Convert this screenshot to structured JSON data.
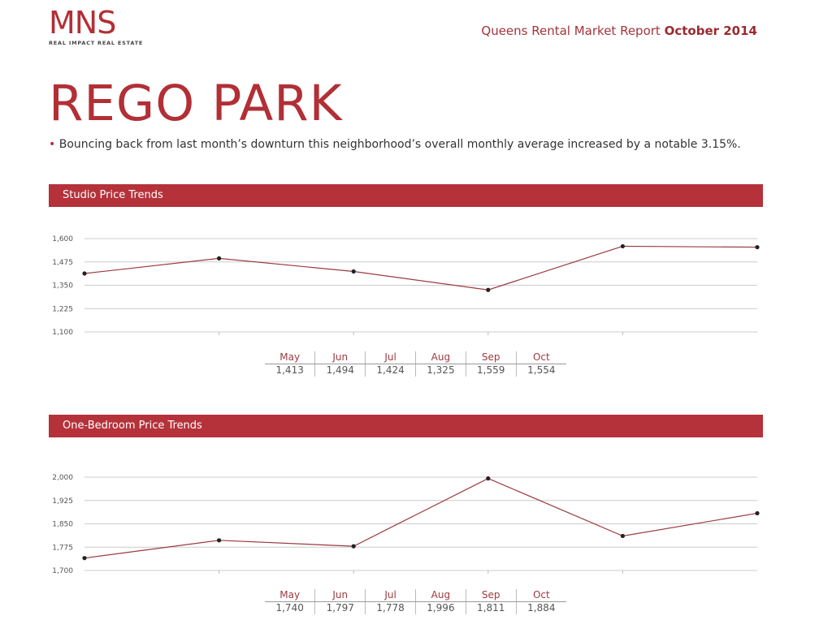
{
  "header": {
    "logo": "MNS",
    "logo_tagline": "REAL IMPACT REAL ESTATE",
    "report_title": "Queens Rental Market Report",
    "report_period": "October 2014"
  },
  "neighborhood": "REGO PARK",
  "summary": "Bouncing back from last month’s downturn this neighborhood’s overall monthly average increased by a notable 3.15%.",
  "colors": {
    "brand": "#b5323a",
    "line": "#9b3a40",
    "marker": "#222222",
    "grid": "#cccccc"
  },
  "sections": [
    {
      "title": "Studio Price Trends"
    },
    {
      "title": "One-Bedroom Price Trends"
    }
  ],
  "chart_data": [
    {
      "type": "line",
      "title": "Studio Price Trends",
      "categories": [
        "May",
        "Jun",
        "Jul",
        "Aug",
        "Sep",
        "Oct"
      ],
      "values": [
        1413,
        1494,
        1424,
        1325,
        1559,
        1554
      ],
      "value_labels": [
        "1,413",
        "1,494",
        "1,424",
        "1,325",
        "1,559",
        "1,554"
      ],
      "yticks": [
        "1,600",
        "1,475",
        "1,350",
        "1,225",
        "1,100"
      ],
      "ylim": [
        1100,
        1600
      ],
      "xlabel": "",
      "ylabel": "",
      "grid": true,
      "legend": "none"
    },
    {
      "type": "line",
      "title": "One-Bedroom Price Trends",
      "categories": [
        "May",
        "Jun",
        "Jul",
        "Aug",
        "Sep",
        "Oct"
      ],
      "values": [
        1740,
        1797,
        1778,
        1996,
        1811,
        1884
      ],
      "value_labels": [
        "1,740",
        "1,797",
        "1,778",
        "1,996",
        "1,811",
        "1,884"
      ],
      "yticks": [
        "2,000",
        "1,925",
        "1,850",
        "1,775",
        "1,700"
      ],
      "ylim": [
        1700,
        2000
      ],
      "xlabel": "",
      "ylabel": "",
      "grid": true,
      "legend": "none"
    }
  ]
}
